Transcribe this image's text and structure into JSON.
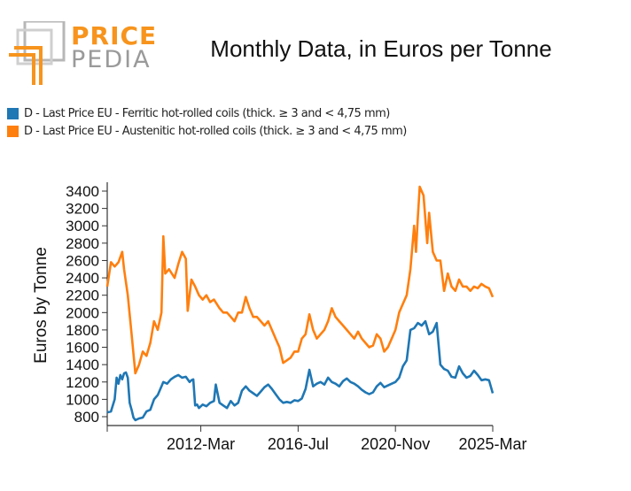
{
  "brand": {
    "logo_top": "PRICE",
    "logo_bottom": "PEDIA",
    "orange": "#f7941d",
    "grey": "#9a9a9a"
  },
  "chart_data": {
    "type": "line",
    "title": "Monthly Data, in Euros per Tonne",
    "ylabel": "Euros by Tonne",
    "xlabel": "",
    "ylim": [
      700,
      3500
    ],
    "yticks": [
      800,
      1000,
      1200,
      1400,
      1600,
      1800,
      2000,
      2200,
      2400,
      2600,
      2800,
      3000,
      3200,
      3400
    ],
    "x_range": [
      "2008-01",
      "2025-03"
    ],
    "xticks": [
      {
        "date": "2012-03",
        "label": "2012-Mar"
      },
      {
        "date": "2016-07",
        "label": "2016-Jul"
      },
      {
        "date": "2020-11",
        "label": "2020-Nov"
      },
      {
        "date": "2025-03",
        "label": "2025-Mar"
      }
    ],
    "legend_position": "top-left",
    "grid": false,
    "series": [
      {
        "name": "D - Last Price EU - Ferritic hot-rolled coils (thick. ≥ 3 and < 4,75 mm)",
        "color": "#1f77b4",
        "points": [
          [
            "2008-01",
            850
          ],
          [
            "2008-03",
            860
          ],
          [
            "2008-05",
            1000
          ],
          [
            "2008-06",
            1250
          ],
          [
            "2008-07",
            1180
          ],
          [
            "2008-08",
            1280
          ],
          [
            "2008-09",
            1230
          ],
          [
            "2008-10",
            1300
          ],
          [
            "2008-11",
            1310
          ],
          [
            "2008-12",
            1250
          ],
          [
            "2009-01",
            960
          ],
          [
            "2009-02",
            880
          ],
          [
            "2009-03",
            790
          ],
          [
            "2009-04",
            760
          ],
          [
            "2009-06",
            780
          ],
          [
            "2009-08",
            790
          ],
          [
            "2009-10",
            860
          ],
          [
            "2009-12",
            880
          ],
          [
            "2010-02",
            1000
          ],
          [
            "2010-04",
            1050
          ],
          [
            "2010-06",
            1150
          ],
          [
            "2010-07",
            1200
          ],
          [
            "2010-09",
            1180
          ],
          [
            "2010-11",
            1230
          ],
          [
            "2011-01",
            1260
          ],
          [
            "2011-03",
            1280
          ],
          [
            "2011-05",
            1250
          ],
          [
            "2011-07",
            1260
          ],
          [
            "2011-09",
            1200
          ],
          [
            "2011-10",
            1220
          ],
          [
            "2011-11",
            1230
          ],
          [
            "2011-12",
            930
          ],
          [
            "2012-01",
            940
          ],
          [
            "2012-02",
            900
          ],
          [
            "2012-04",
            940
          ],
          [
            "2012-06",
            920
          ],
          [
            "2012-08",
            960
          ],
          [
            "2012-10",
            980
          ],
          [
            "2012-11",
            1170
          ],
          [
            "2013-01",
            960
          ],
          [
            "2013-03",
            930
          ],
          [
            "2013-05",
            900
          ],
          [
            "2013-07",
            980
          ],
          [
            "2013-09",
            930
          ],
          [
            "2013-11",
            960
          ],
          [
            "2014-01",
            1100
          ],
          [
            "2014-03",
            1150
          ],
          [
            "2014-05",
            1100
          ],
          [
            "2014-07",
            1070
          ],
          [
            "2014-09",
            1040
          ],
          [
            "2014-11",
            1090
          ],
          [
            "2015-01",
            1140
          ],
          [
            "2015-03",
            1170
          ],
          [
            "2015-05",
            1120
          ],
          [
            "2015-07",
            1060
          ],
          [
            "2015-09",
            1000
          ],
          [
            "2015-11",
            960
          ],
          [
            "2016-01",
            970
          ],
          [
            "2016-03",
            960
          ],
          [
            "2016-05",
            990
          ],
          [
            "2016-07",
            980
          ],
          [
            "2016-09",
            1010
          ],
          [
            "2016-11",
            1120
          ],
          [
            "2017-01",
            1340
          ],
          [
            "2017-03",
            1150
          ],
          [
            "2017-05",
            1180
          ],
          [
            "2017-07",
            1200
          ],
          [
            "2017-09",
            1170
          ],
          [
            "2017-11",
            1250
          ],
          [
            "2018-01",
            1200
          ],
          [
            "2018-03",
            1180
          ],
          [
            "2018-05",
            1150
          ],
          [
            "2018-07",
            1210
          ],
          [
            "2018-09",
            1240
          ],
          [
            "2018-11",
            1200
          ],
          [
            "2019-01",
            1180
          ],
          [
            "2019-03",
            1150
          ],
          [
            "2019-05",
            1110
          ],
          [
            "2019-07",
            1080
          ],
          [
            "2019-09",
            1060
          ],
          [
            "2019-11",
            1080
          ],
          [
            "2020-01",
            1150
          ],
          [
            "2020-03",
            1190
          ],
          [
            "2020-05",
            1140
          ],
          [
            "2020-07",
            1160
          ],
          [
            "2020-09",
            1180
          ],
          [
            "2020-11",
            1200
          ],
          [
            "2021-01",
            1250
          ],
          [
            "2021-03",
            1380
          ],
          [
            "2021-05",
            1450
          ],
          [
            "2021-07",
            1800
          ],
          [
            "2021-09",
            1820
          ],
          [
            "2021-11",
            1880
          ],
          [
            "2022-01",
            1850
          ],
          [
            "2022-03",
            1900
          ],
          [
            "2022-05",
            1750
          ],
          [
            "2022-07",
            1780
          ],
          [
            "2022-09",
            1880
          ],
          [
            "2022-11",
            1400
          ],
          [
            "2023-01",
            1350
          ],
          [
            "2023-03",
            1330
          ],
          [
            "2023-05",
            1260
          ],
          [
            "2023-07",
            1250
          ],
          [
            "2023-09",
            1380
          ],
          [
            "2023-11",
            1300
          ],
          [
            "2024-01",
            1250
          ],
          [
            "2024-03",
            1270
          ],
          [
            "2024-05",
            1330
          ],
          [
            "2024-07",
            1280
          ],
          [
            "2024-09",
            1220
          ],
          [
            "2024-11",
            1230
          ],
          [
            "2025-01",
            1220
          ],
          [
            "2025-03",
            1070
          ]
        ]
      },
      {
        "name": "D - Last Price EU - Austenitic hot-rolled coils (thick. ≥ 3 and < 4,75 mm)",
        "color": "#ff7f0e",
        "points": [
          [
            "2008-01",
            2300
          ],
          [
            "2008-03",
            2580
          ],
          [
            "2008-05",
            2530
          ],
          [
            "2008-07",
            2580
          ],
          [
            "2008-09",
            2700
          ],
          [
            "2008-10",
            2500
          ],
          [
            "2008-12",
            2200
          ],
          [
            "2009-02",
            1750
          ],
          [
            "2009-04",
            1300
          ],
          [
            "2009-06",
            1400
          ],
          [
            "2009-08",
            1550
          ],
          [
            "2009-10",
            1500
          ],
          [
            "2009-12",
            1650
          ],
          [
            "2010-02",
            1900
          ],
          [
            "2010-04",
            1800
          ],
          [
            "2010-06",
            2000
          ],
          [
            "2010-07",
            2880
          ],
          [
            "2010-08",
            2450
          ],
          [
            "2010-10",
            2500
          ],
          [
            "2011-01",
            2400
          ],
          [
            "2011-03",
            2560
          ],
          [
            "2011-05",
            2700
          ],
          [
            "2011-07",
            2620
          ],
          [
            "2011-08",
            2020
          ],
          [
            "2011-10",
            2380
          ],
          [
            "2011-12",
            2300
          ],
          [
            "2012-02",
            2200
          ],
          [
            "2012-04",
            2150
          ],
          [
            "2012-06",
            2200
          ],
          [
            "2012-08",
            2120
          ],
          [
            "2012-10",
            2150
          ],
          [
            "2013-01",
            2050
          ],
          [
            "2013-03",
            2000
          ],
          [
            "2013-05",
            2000
          ],
          [
            "2013-07",
            1950
          ],
          [
            "2013-09",
            1900
          ],
          [
            "2013-11",
            2000
          ],
          [
            "2014-01",
            2000
          ],
          [
            "2014-03",
            2180
          ],
          [
            "2014-05",
            2050
          ],
          [
            "2014-07",
            1950
          ],
          [
            "2014-09",
            1950
          ],
          [
            "2014-11",
            1900
          ],
          [
            "2015-01",
            1850
          ],
          [
            "2015-03",
            1900
          ],
          [
            "2015-05",
            1800
          ],
          [
            "2015-07",
            1700
          ],
          [
            "2015-09",
            1600
          ],
          [
            "2015-11",
            1420
          ],
          [
            "2016-01",
            1450
          ],
          [
            "2016-03",
            1480
          ],
          [
            "2016-05",
            1550
          ],
          [
            "2016-07",
            1550
          ],
          [
            "2016-09",
            1700
          ],
          [
            "2016-11",
            1750
          ],
          [
            "2017-01",
            1980
          ],
          [
            "2017-03",
            1800
          ],
          [
            "2017-05",
            1700
          ],
          [
            "2017-07",
            1750
          ],
          [
            "2017-09",
            1800
          ],
          [
            "2017-11",
            1900
          ],
          [
            "2018-01",
            2050
          ],
          [
            "2018-03",
            1950
          ],
          [
            "2018-05",
            1900
          ],
          [
            "2018-07",
            1850
          ],
          [
            "2018-09",
            1800
          ],
          [
            "2018-11",
            1750
          ],
          [
            "2019-01",
            1700
          ],
          [
            "2019-03",
            1780
          ],
          [
            "2019-05",
            1700
          ],
          [
            "2019-07",
            1650
          ],
          [
            "2019-09",
            1600
          ],
          [
            "2019-11",
            1620
          ],
          [
            "2020-01",
            1750
          ],
          [
            "2020-03",
            1700
          ],
          [
            "2020-05",
            1550
          ],
          [
            "2020-07",
            1600
          ],
          [
            "2020-09",
            1700
          ],
          [
            "2020-11",
            1800
          ],
          [
            "2021-01",
            2000
          ],
          [
            "2021-03",
            2100
          ],
          [
            "2021-05",
            2200
          ],
          [
            "2021-07",
            2500
          ],
          [
            "2021-09",
            3000
          ],
          [
            "2021-10",
            2700
          ],
          [
            "2021-11",
            3100
          ],
          [
            "2021-12",
            3450
          ],
          [
            "2022-02",
            3350
          ],
          [
            "2022-04",
            2800
          ],
          [
            "2022-05",
            3150
          ],
          [
            "2022-07",
            2700
          ],
          [
            "2022-09",
            2600
          ],
          [
            "2022-11",
            2600
          ],
          [
            "2023-01",
            2250
          ],
          [
            "2023-03",
            2450
          ],
          [
            "2023-05",
            2300
          ],
          [
            "2023-07",
            2250
          ],
          [
            "2023-09",
            2380
          ],
          [
            "2023-11",
            2300
          ],
          [
            "2024-01",
            2300
          ],
          [
            "2024-03",
            2250
          ],
          [
            "2024-05",
            2300
          ],
          [
            "2024-07",
            2280
          ],
          [
            "2024-09",
            2330
          ],
          [
            "2024-11",
            2300
          ],
          [
            "2025-01",
            2280
          ],
          [
            "2025-03",
            2180
          ]
        ]
      }
    ]
  }
}
